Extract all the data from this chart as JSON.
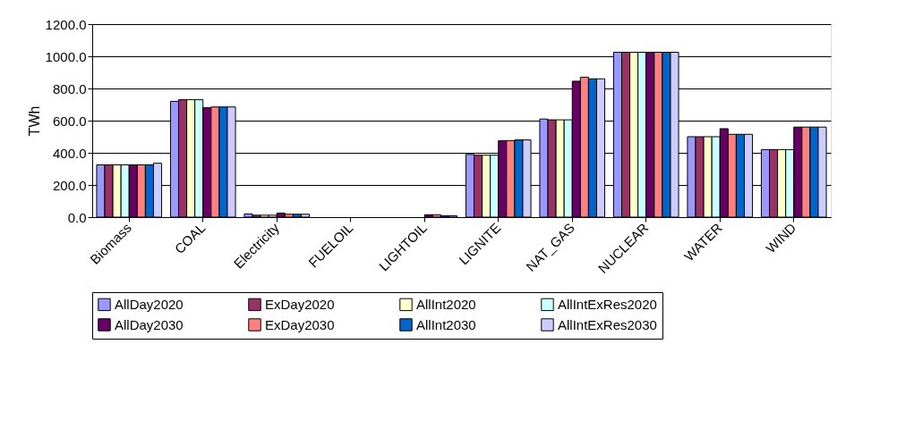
{
  "chart_data": {
    "type": "bar",
    "ylabel": "TWh",
    "categories": [
      "Biomass",
      "COAL",
      "Electricity",
      "FUELOIL",
      "LIGHTOIL",
      "LIGNITE",
      "NAT_GAS",
      "NUCLEAR",
      "WATER",
      "WIND"
    ],
    "series": [
      {
        "name": "AllDay2020",
        "color": "#9999ff",
        "values": [
          325,
          720,
          20,
          0,
          0,
          390,
          610,
          1025,
          500,
          420
        ]
      },
      {
        "name": "ExDay2020",
        "color": "#993366",
        "values": [
          325,
          730,
          12,
          0,
          0,
          385,
          605,
          1025,
          500,
          420
        ]
      },
      {
        "name": "AllInt2020",
        "color": "#ffffcc",
        "values": [
          325,
          730,
          12,
          0,
          0,
          385,
          605,
          1025,
          500,
          420
        ]
      },
      {
        "name": "AllIntExRes2020",
        "color": "#ccffff",
        "values": [
          325,
          730,
          12,
          0,
          0,
          385,
          605,
          1025,
          500,
          420
        ]
      },
      {
        "name": "AllDay2030",
        "color": "#660066",
        "values": [
          325,
          680,
          25,
          0,
          15,
          475,
          845,
          1025,
          550,
          560
        ]
      },
      {
        "name": "ExDay2030",
        "color": "#ff8080",
        "values": [
          325,
          685,
          18,
          0,
          15,
          475,
          870,
          1025,
          515,
          560
        ]
      },
      {
        "name": "AllInt2030",
        "color": "#0066cc",
        "values": [
          325,
          685,
          18,
          0,
          8,
          480,
          860,
          1025,
          515,
          560
        ]
      },
      {
        "name": "AllIntExRes2030",
        "color": "#ccccff",
        "values": [
          335,
          685,
          18,
          0,
          8,
          480,
          860,
          1025,
          515,
          560
        ]
      }
    ],
    "ylim": [
      0,
      1200
    ],
    "yticks": [
      {
        "value": 0,
        "label": "0.0"
      },
      {
        "value": 200,
        "label": "200.0"
      },
      {
        "value": 400,
        "label": "400.0"
      },
      {
        "value": 600,
        "label": "600.0"
      },
      {
        "value": 800,
        "label": "800.0"
      },
      {
        "value": 1000,
        "label": "1000.0"
      },
      {
        "value": 1200,
        "label": "1200.0"
      }
    ],
    "grid": "y",
    "legend": "bottom"
  }
}
